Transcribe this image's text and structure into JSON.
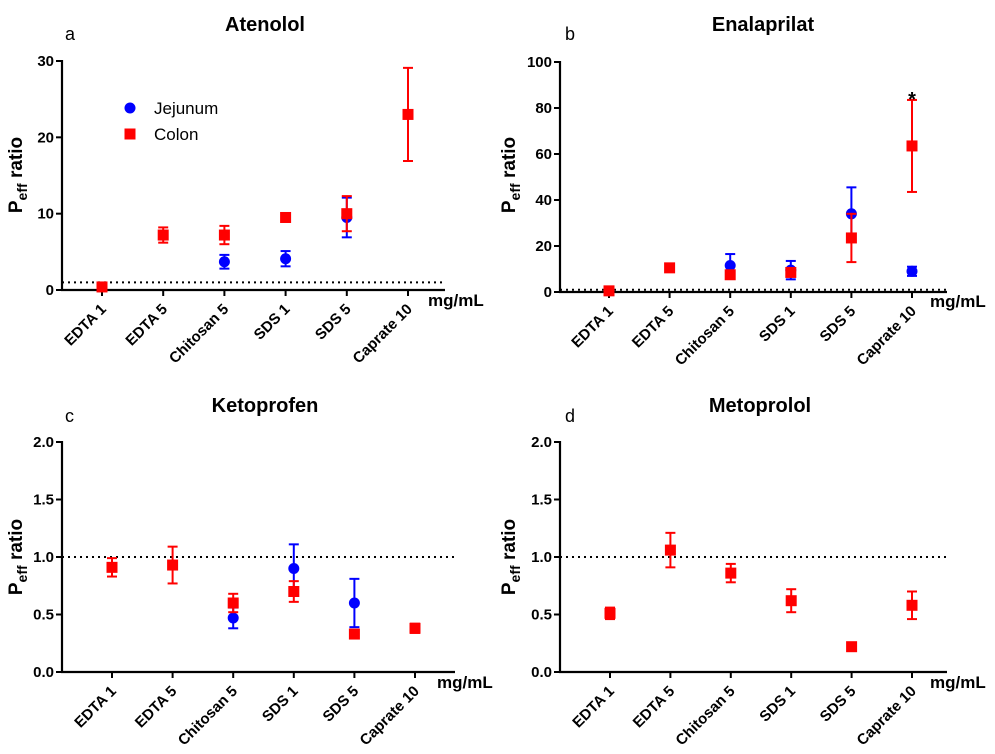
{
  "legend": {
    "items": [
      {
        "name": "Jejunum",
        "color": "#0000ff",
        "marker": "circle"
      },
      {
        "name": "Colon",
        "color": "#ff0000",
        "marker": "square"
      }
    ]
  },
  "chart_data": [
    {
      "type": "scatter",
      "panel": "a",
      "title": "Atenolol",
      "ylabel": {
        "main": "P",
        "sub": "eff",
        "rest": " ratio"
      },
      "xlabel": "mg/mL",
      "categories": [
        "EDTA 1",
        "EDTA 5",
        "Chitosan 5",
        "SDS 1",
        "SDS 5",
        "Caprate 10"
      ],
      "ylim": [
        0,
        30
      ],
      "yticks": [
        "0",
        "10",
        "20",
        "30"
      ],
      "reference_line": 1,
      "series": [
        {
          "name": "Jejunum",
          "color": "#0000ff",
          "marker": "circle",
          "values": [
            null,
            null,
            3.7,
            4.1,
            9.5,
            null
          ],
          "errors": [
            null,
            null,
            0.9,
            1.0,
            2.6,
            null
          ]
        },
        {
          "name": "Colon",
          "color": "#ff0000",
          "marker": "square",
          "values": [
            0.4,
            7.2,
            7.2,
            9.5,
            10.0,
            23.0
          ],
          "errors": [
            0.1,
            1.0,
            1.2,
            0.5,
            2.3,
            6.1
          ]
        }
      ],
      "annotations": []
    },
    {
      "type": "scatter",
      "panel": "b",
      "title": "Enalaprilat",
      "ylabel": {
        "main": "P",
        "sub": "eff",
        "rest": " ratio"
      },
      "xlabel": "mg/mL",
      "categories": [
        "EDTA 1",
        "EDTA 5",
        "Chitosan 5",
        "SDS 1",
        "SDS 5",
        "Caprate 10"
      ],
      "ylim": [
        0,
        100
      ],
      "yticks": [
        "0",
        "20",
        "40",
        "60",
        "80",
        "100"
      ],
      "reference_line": 1,
      "series": [
        {
          "name": "Jejunum",
          "color": "#0000ff",
          "marker": "circle",
          "values": [
            null,
            null,
            11.5,
            9.5,
            34.0,
            9.0
          ],
          "errors": [
            null,
            null,
            5.0,
            4.0,
            11.5,
            2.0
          ]
        },
        {
          "name": "Colon",
          "color": "#ff0000",
          "marker": "square",
          "values": [
            0.5,
            10.5,
            7.5,
            8.5,
            23.5,
            63.5
          ],
          "errors": [
            0.2,
            0.8,
            1.5,
            1.0,
            10.5,
            20.0
          ]
        }
      ],
      "annotations": [
        {
          "category": "Caprate 10",
          "text": "*",
          "y": 86
        }
      ]
    },
    {
      "type": "scatter",
      "panel": "c",
      "title": "Ketoprofen",
      "ylabel": {
        "main": "P",
        "sub": "eff",
        "rest": " ratio"
      },
      "xlabel": "mg/mL",
      "categories": [
        "EDTA 1",
        "EDTA 5",
        "Chitosan 5",
        "SDS 1",
        "SDS 5",
        "Caprate 10"
      ],
      "ylim": [
        0,
        2
      ],
      "yticks": [
        "0.0",
        "0.5",
        "1.0",
        "1.5",
        "2.0"
      ],
      "reference_line": 1,
      "series": [
        {
          "name": "Jejunum",
          "color": "#0000ff",
          "marker": "circle",
          "values": [
            null,
            null,
            0.47,
            0.9,
            0.6,
            null
          ],
          "errors": [
            null,
            null,
            0.09,
            0.21,
            0.21,
            null
          ]
        },
        {
          "name": "Colon",
          "color": "#ff0000",
          "marker": "square",
          "values": [
            0.91,
            0.93,
            0.6,
            0.7,
            0.33,
            0.38
          ],
          "errors": [
            0.08,
            0.16,
            0.08,
            0.09,
            0.02,
            0.04
          ]
        }
      ],
      "annotations": []
    },
    {
      "type": "scatter",
      "panel": "d",
      "title": "Metoprolol",
      "ylabel": {
        "main": "P",
        "sub": "eff",
        "rest": " ratio"
      },
      "xlabel": "mg/mL",
      "categories": [
        "EDTA 1",
        "EDTA 5",
        "Chitosan 5",
        "SDS 1",
        "SDS 5",
        "Caprate 10"
      ],
      "ylim": [
        0,
        2
      ],
      "yticks": [
        "0.0",
        "0.5",
        "1.0",
        "1.5",
        "2.0"
      ],
      "reference_line": 1,
      "series": [
        {
          "name": "Colon",
          "color": "#ff0000",
          "marker": "square",
          "values": [
            0.51,
            1.06,
            0.86,
            0.62,
            0.22,
            0.58
          ],
          "errors": [
            0.05,
            0.15,
            0.08,
            0.1,
            0.01,
            0.12
          ]
        }
      ],
      "annotations": []
    }
  ]
}
